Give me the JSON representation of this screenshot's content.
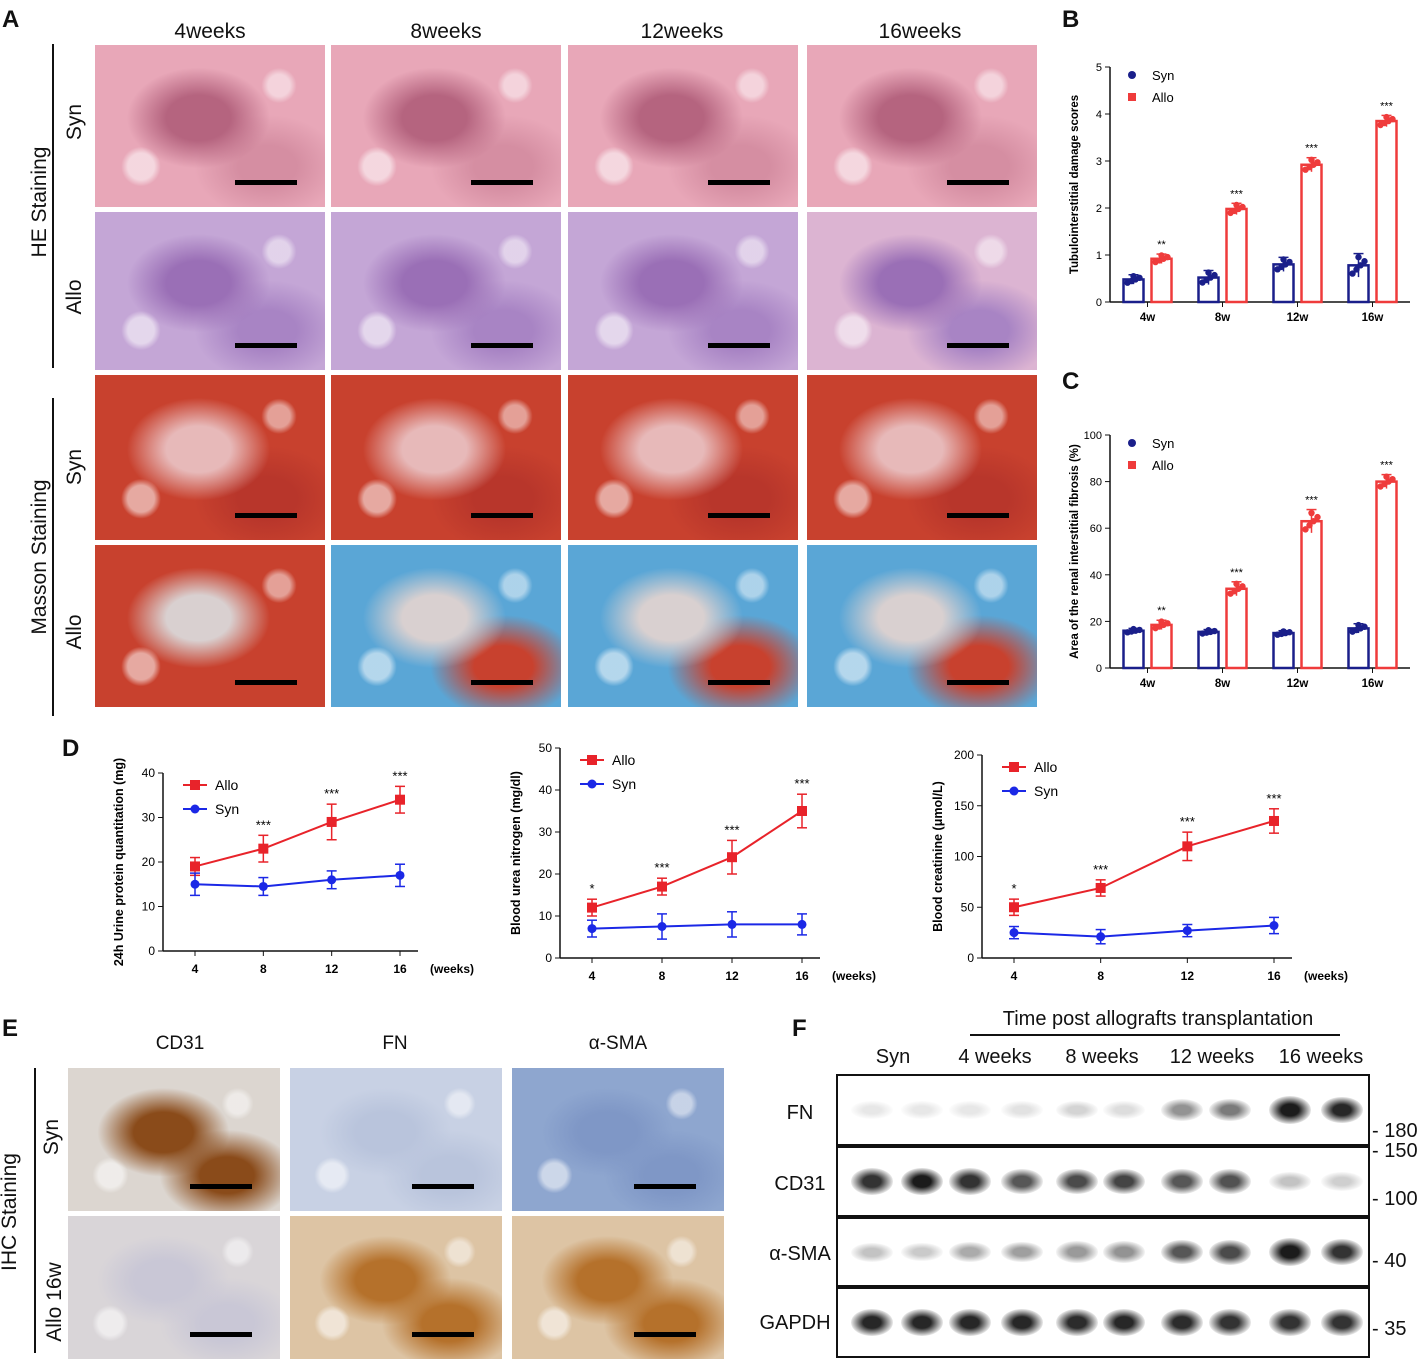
{
  "panels": {
    "A": {
      "label": "A",
      "columns": [
        "4weeks",
        "8weeks",
        "12weeks",
        "16weeks"
      ],
      "groups": [
        {
          "stain": "HE Staining",
          "rows": [
            "Syn",
            "Allo"
          ]
        },
        {
          "stain": "Masson Staining",
          "rows": [
            "Syn",
            "Allo"
          ]
        }
      ]
    },
    "B": {
      "label": "B"
    },
    "C": {
      "label": "C"
    },
    "D": {
      "label": "D",
      "weeks_unit": "(weeks)"
    },
    "E": {
      "label": "E",
      "columns": [
        "CD31",
        "FN",
        "α-SMA"
      ],
      "rows": [
        "Syn",
        "Allo 16w"
      ],
      "stain": "IHC Staining"
    },
    "F": {
      "label": "F",
      "header": "Time post allografts transplantation",
      "lanes": [
        "Syn",
        "4 weeks",
        "8 weeks",
        "12 weeks",
        "16 weeks"
      ],
      "proteins": [
        "FN",
        "CD31",
        "α-SMA",
        "GAPDH"
      ],
      "markers": [
        "180",
        "150",
        "100",
        "40",
        "35"
      ],
      "band_intensity": {
        "FN": [
          0.1,
          0.1,
          0.1,
          0.12,
          0.18,
          0.14,
          0.45,
          0.55,
          0.95,
          0.9
        ],
        "CD31": [
          0.85,
          0.95,
          0.85,
          0.7,
          0.75,
          0.78,
          0.7,
          0.72,
          0.25,
          0.2
        ],
        "α-SMA": [
          0.25,
          0.22,
          0.35,
          0.4,
          0.42,
          0.45,
          0.7,
          0.75,
          0.95,
          0.85
        ],
        "GAPDH": [
          0.9,
          0.9,
          0.9,
          0.9,
          0.88,
          0.9,
          0.88,
          0.85,
          0.85,
          0.85
        ]
      }
    }
  },
  "chart_data": [
    {
      "panel": "B",
      "type": "bar",
      "ylabel": "Tubulointerstitial damage scores",
      "categories": [
        "4w",
        "8w",
        "12w",
        "16w"
      ],
      "yticks": [
        0,
        1,
        2,
        3,
        4,
        5
      ],
      "ylim": [
        0,
        5
      ],
      "legend_placement": "top-left",
      "series": [
        {
          "name": "Syn",
          "color": "#1a1f8a",
          "values": [
            0.48,
            0.52,
            0.8,
            0.78
          ],
          "err": [
            0.1,
            0.15,
            0.15,
            0.25
          ]
        },
        {
          "name": "Allo",
          "color": "#ef3b3b",
          "values": [
            0.92,
            1.98,
            2.92,
            3.85
          ],
          "err": [
            0.1,
            0.12,
            0.15,
            0.12
          ]
        }
      ],
      "annotations": [
        "**",
        "***",
        "***",
        "***"
      ]
    },
    {
      "panel": "C",
      "type": "bar",
      "ylabel": "Area of the renal interstitial fibrosis (%)",
      "categories": [
        "4w",
        "8w",
        "12w",
        "16w"
      ],
      "yticks": [
        0,
        20,
        40,
        60,
        80,
        100
      ],
      "ylim": [
        0,
        100
      ],
      "legend_placement": "top-left",
      "series": [
        {
          "name": "Syn",
          "color": "#1a1f8a",
          "values": [
            16,
            15.5,
            15,
            17
          ],
          "err": [
            1,
            1,
            1,
            2
          ]
        },
        {
          "name": "Allo",
          "color": "#ef3b3b",
          "values": [
            18.5,
            34,
            63,
            80
          ],
          "err": [
            2,
            3,
            5,
            3
          ]
        }
      ],
      "annotations": [
        "**",
        "***",
        "***",
        "***"
      ]
    },
    {
      "panel": "D1",
      "type": "line",
      "ylabel": "24h Urine protein quantitation (mg)",
      "x": [
        4,
        8,
        12,
        16
      ],
      "yticks": [
        0,
        10,
        20,
        30,
        40
      ],
      "ylim": [
        0,
        40
      ],
      "legend_placement": "top-left",
      "series": [
        {
          "name": "Allo",
          "color": "#e8232a",
          "values": [
            19,
            23,
            29,
            34
          ],
          "err": [
            2,
            3,
            4,
            3
          ]
        },
        {
          "name": "Syn",
          "color": "#1b28e6",
          "values": [
            15,
            14.5,
            16,
            17
          ],
          "err": [
            2.5,
            2,
            2,
            2.5
          ]
        }
      ],
      "annotations": [
        "",
        "***",
        "***",
        "***"
      ]
    },
    {
      "panel": "D2",
      "type": "line",
      "ylabel": "Blood urea nitrogen (mg/dl)",
      "x": [
        4,
        8,
        12,
        16
      ],
      "yticks": [
        0,
        10,
        20,
        30,
        40,
        50
      ],
      "ylim": [
        0,
        50
      ],
      "legend_placement": "top-left",
      "series": [
        {
          "name": "Allo",
          "color": "#e8232a",
          "values": [
            12,
            17,
            24,
            35
          ],
          "err": [
            2,
            2,
            4,
            4
          ]
        },
        {
          "name": "Syn",
          "color": "#1b28e6",
          "values": [
            7,
            7.5,
            8,
            8
          ],
          "err": [
            2,
            3,
            3,
            2.5
          ]
        }
      ],
      "annotations": [
        "*",
        "***",
        "***",
        "***"
      ]
    },
    {
      "panel": "D3",
      "type": "line",
      "ylabel": "Blood creatinine (μmol/L)",
      "x": [
        4,
        8,
        12,
        16
      ],
      "yticks": [
        0,
        50,
        100,
        150,
        200
      ],
      "ylim": [
        0,
        200
      ],
      "legend_placement": "top-left",
      "series": [
        {
          "name": "Allo",
          "color": "#e8232a",
          "values": [
            50,
            69,
            110,
            135
          ],
          "err": [
            8,
            8,
            14,
            12
          ]
        },
        {
          "name": "Syn",
          "color": "#1b28e6",
          "values": [
            25,
            21,
            27,
            32
          ],
          "err": [
            6,
            7,
            6,
            8
          ]
        }
      ],
      "annotations": [
        "*",
        "***",
        "***",
        "***"
      ]
    }
  ],
  "colors": {
    "he_syn": "#e8a7b8",
    "he_allo": "#c4a6d6",
    "masson_red": "#c8412e",
    "masson_blue": "#5aa6d6",
    "ihc_brown": "#b5712b",
    "ihc_blue": "#8ea6cf"
  }
}
